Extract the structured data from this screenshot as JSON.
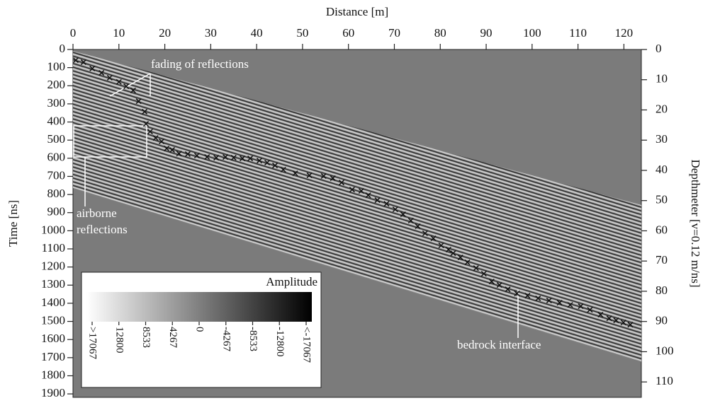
{
  "chart_data": {
    "type": "scatter",
    "x_label": "Distance [m]",
    "y_label": "Time [ns]",
    "y2_label": "Depthmeter  [v=0.12 m/ns]",
    "xlim": [
      0,
      123.8
    ],
    "xticks": [
      0,
      10,
      20,
      30,
      40,
      50,
      60,
      70,
      80,
      90,
      100,
      110,
      120
    ],
    "ylim": [
      0,
      1919
    ],
    "yticks": [
      0,
      100,
      200,
      300,
      400,
      500,
      600,
      700,
      800,
      900,
      1000,
      1100,
      1200,
      1300,
      1400,
      1500,
      1600,
      1700,
      1800,
      1900
    ],
    "y2lim": [
      0,
      115.1
    ],
    "y2ticks": [
      0,
      10,
      20,
      30,
      40,
      50,
      60,
      70,
      80,
      90,
      100,
      110
    ],
    "color": "#111111",
    "x": [
      0.6,
      2.3,
      4.2,
      6.2,
      8.0,
      10.0,
      11.6,
      13.1,
      14.3,
      15.6,
      15.9,
      16.8,
      18.0,
      19.3,
      20.4,
      21.6,
      23.1,
      25.0,
      27.0,
      29.2,
      31.2,
      33.2,
      35.0,
      36.9,
      38.6,
      40.6,
      42.3,
      44.0,
      45.8,
      48.4,
      51.5,
      54.6,
      56.6,
      58.5,
      60.8,
      62.8,
      64.3,
      66.3,
      68.3,
      70.2,
      71.9,
      73.6,
      75.1,
      76.7,
      78.5,
      80.2,
      81.8,
      82.8,
      84.4,
      85.9,
      87.8,
      89.5,
      91.2,
      92.9,
      94.7,
      96.7,
      99.0,
      101.3,
      103.7,
      106.0,
      108.3,
      110.6,
      112.6,
      114.9,
      116.8,
      118.3,
      119.9,
      121.4
    ],
    "values": [
      59,
      70,
      105,
      129,
      156,
      179,
      203,
      226,
      285,
      343,
      410,
      453,
      488,
      507,
      546,
      554,
      574,
      577,
      585,
      593,
      597,
      593,
      597,
      601,
      601,
      613,
      624,
      640,
      663,
      683,
      694,
      698,
      710,
      734,
      773,
      780,
      804,
      831,
      851,
      882,
      909,
      944,
      975,
      1014,
      1042,
      1081,
      1104,
      1124,
      1147,
      1174,
      1206,
      1237,
      1280,
      1299,
      1323,
      1346,
      1358,
      1373,
      1385,
      1397,
      1409,
      1416,
      1436,
      1463,
      1483,
      1494,
      1506,
      1518
    ],
    "annotations": [
      "fading of reflections",
      "airborne",
      "reflections",
      "bedrock interface"
    ],
    "colorbar": {
      "title": "Amplitude",
      "ticks": [
        {
          "value": 17067,
          "label": ">17067"
        },
        12800,
        8533,
        4267,
        0,
        -4267,
        -8533,
        -12800,
        {
          "value": -17067,
          "label": "<-17067"
        }
      ]
    }
  }
}
